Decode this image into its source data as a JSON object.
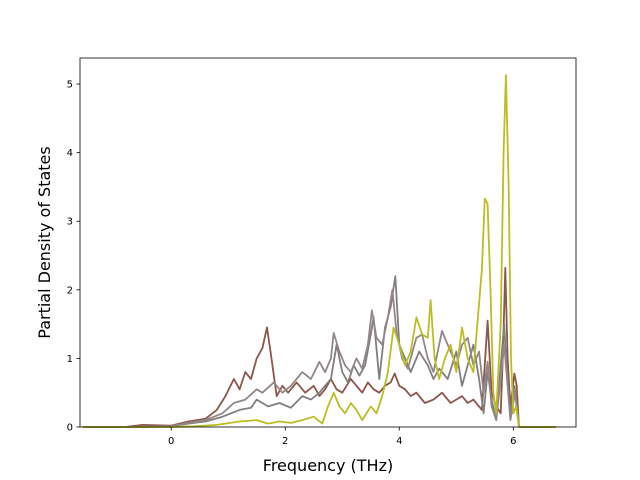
{
  "chart_data": {
    "type": "line",
    "xlabel": "Frequency (THz)",
    "ylabel": "Partial Density of States",
    "xlim": [
      -1.6,
      7.1
    ],
    "ylim": [
      0,
      5.38
    ],
    "xticks": [
      "0",
      "2",
      "4",
      "6"
    ],
    "yticks": [
      "0",
      "1",
      "2",
      "3",
      "4",
      "5"
    ],
    "legend": "none",
    "grid": false,
    "series": [
      {
        "color": "#8c564b",
        "points": [
          [
            -1.55,
            0
          ],
          [
            -0.8,
            0
          ],
          [
            -0.5,
            0.03
          ],
          [
            0,
            0.02
          ],
          [
            0.3,
            0.08
          ],
          [
            0.6,
            0.12
          ],
          [
            0.8,
            0.25
          ],
          [
            0.95,
            0.45
          ],
          [
            1.1,
            0.7
          ],
          [
            1.2,
            0.55
          ],
          [
            1.3,
            0.8
          ],
          [
            1.4,
            0.7
          ],
          [
            1.5,
            1.0
          ],
          [
            1.6,
            1.15
          ],
          [
            1.68,
            1.45
          ],
          [
            1.75,
            1.05
          ],
          [
            1.85,
            0.45
          ],
          [
            1.95,
            0.6
          ],
          [
            2.05,
            0.5
          ],
          [
            2.2,
            0.65
          ],
          [
            2.35,
            0.5
          ],
          [
            2.5,
            0.6
          ],
          [
            2.6,
            0.45
          ],
          [
            2.7,
            0.55
          ],
          [
            2.8,
            0.7
          ],
          [
            2.9,
            0.55
          ],
          [
            3.0,
            0.5
          ],
          [
            3.15,
            0.7
          ],
          [
            3.25,
            0.6
          ],
          [
            3.35,
            0.5
          ],
          [
            3.45,
            0.65
          ],
          [
            3.55,
            0.55
          ],
          [
            3.65,
            0.5
          ],
          [
            3.75,
            0.6
          ],
          [
            3.85,
            0.65
          ],
          [
            3.92,
            0.78
          ],
          [
            4.0,
            0.6
          ],
          [
            4.1,
            0.55
          ],
          [
            4.2,
            0.45
          ],
          [
            4.3,
            0.5
          ],
          [
            4.45,
            0.35
          ],
          [
            4.6,
            0.4
          ],
          [
            4.75,
            0.5
          ],
          [
            4.9,
            0.35
          ],
          [
            5.0,
            0.4
          ],
          [
            5.1,
            0.45
          ],
          [
            5.2,
            0.35
          ],
          [
            5.3,
            0.4
          ],
          [
            5.45,
            0.25
          ],
          [
            5.55,
            1.55
          ],
          [
            5.62,
            0.5
          ],
          [
            5.7,
            0.3
          ],
          [
            5.78,
            0.2
          ],
          [
            5.82,
            1.1
          ],
          [
            5.86,
            2.32
          ],
          [
            5.9,
            1.0
          ],
          [
            5.95,
            0.3
          ],
          [
            6.02,
            0.78
          ],
          [
            6.06,
            0.6
          ],
          [
            6.1,
            0
          ],
          [
            6.75,
            0
          ]
        ]
      },
      {
        "color": "#7f7f7f",
        "points": [
          [
            -1.55,
            0
          ],
          [
            -0.5,
            0
          ],
          [
            0,
            0.01
          ],
          [
            0.3,
            0.05
          ],
          [
            0.6,
            0.08
          ],
          [
            0.9,
            0.15
          ],
          [
            1.2,
            0.25
          ],
          [
            1.4,
            0.28
          ],
          [
            1.5,
            0.4
          ],
          [
            1.7,
            0.3
          ],
          [
            1.9,
            0.35
          ],
          [
            2.1,
            0.28
          ],
          [
            2.3,
            0.45
          ],
          [
            2.45,
            0.4
          ],
          [
            2.6,
            0.5
          ],
          [
            2.7,
            0.6
          ],
          [
            2.8,
            0.7
          ],
          [
            2.9,
            1.2
          ],
          [
            3.0,
            0.8
          ],
          [
            3.1,
            0.65
          ],
          [
            3.2,
            0.9
          ],
          [
            3.3,
            0.75
          ],
          [
            3.4,
            0.9
          ],
          [
            3.5,
            1.35
          ],
          [
            3.55,
            1.6
          ],
          [
            3.65,
            0.7
          ],
          [
            3.75,
            1.45
          ],
          [
            3.85,
            1.75
          ],
          [
            3.93,
            2.2
          ],
          [
            4.0,
            1.2
          ],
          [
            4.1,
            1.0
          ],
          [
            4.2,
            0.8
          ],
          [
            4.35,
            1.1
          ],
          [
            4.5,
            0.9
          ],
          [
            4.6,
            0.7
          ],
          [
            4.7,
            0.85
          ],
          [
            4.85,
            0.7
          ],
          [
            5.0,
            1.1
          ],
          [
            5.1,
            0.6
          ],
          [
            5.2,
            0.9
          ],
          [
            5.3,
            1.2
          ],
          [
            5.4,
            0.7
          ],
          [
            5.48,
            0.2
          ],
          [
            5.55,
            0.8
          ],
          [
            5.62,
            0.4
          ],
          [
            5.7,
            0.1
          ],
          [
            5.78,
            0.9
          ],
          [
            5.84,
            1.5
          ],
          [
            5.88,
            0.9
          ],
          [
            5.95,
            0.15
          ],
          [
            6.02,
            0.6
          ],
          [
            6.05,
            0.4
          ],
          [
            6.1,
            0
          ],
          [
            6.75,
            0
          ]
        ]
      },
      {
        "color": "#948687",
        "points": [
          [
            -1.55,
            0
          ],
          [
            -0.5,
            0
          ],
          [
            0,
            0.01
          ],
          [
            0.3,
            0.06
          ],
          [
            0.6,
            0.1
          ],
          [
            0.9,
            0.2
          ],
          [
            1.1,
            0.35
          ],
          [
            1.3,
            0.4
          ],
          [
            1.5,
            0.55
          ],
          [
            1.6,
            0.5
          ],
          [
            1.8,
            0.65
          ],
          [
            1.95,
            0.5
          ],
          [
            2.1,
            0.6
          ],
          [
            2.3,
            0.8
          ],
          [
            2.45,
            0.7
          ],
          [
            2.6,
            0.95
          ],
          [
            2.7,
            0.8
          ],
          [
            2.8,
            1.0
          ],
          [
            2.85,
            1.37
          ],
          [
            2.95,
            1.1
          ],
          [
            3.05,
            0.9
          ],
          [
            3.15,
            0.8
          ],
          [
            3.25,
            1.0
          ],
          [
            3.35,
            0.85
          ],
          [
            3.45,
            1.2
          ],
          [
            3.52,
            1.7
          ],
          [
            3.6,
            1.3
          ],
          [
            3.7,
            1.2
          ],
          [
            3.8,
            1.6
          ],
          [
            3.88,
            2.0
          ],
          [
            3.95,
            1.4
          ],
          [
            4.05,
            1.0
          ],
          [
            4.15,
            0.85
          ],
          [
            4.3,
            1.3
          ],
          [
            4.4,
            1.35
          ],
          [
            4.5,
            1.0
          ],
          [
            4.6,
            0.8
          ],
          [
            4.75,
            1.4
          ],
          [
            4.9,
            1.1
          ],
          [
            5.0,
            0.9
          ],
          [
            5.1,
            1.2
          ],
          [
            5.2,
            1.3
          ],
          [
            5.3,
            0.9
          ],
          [
            5.4,
            1.1
          ],
          [
            5.48,
            0.5
          ],
          [
            5.55,
            0.95
          ],
          [
            5.62,
            0.3
          ],
          [
            5.7,
            0.1
          ],
          [
            5.78,
            0.7
          ],
          [
            5.84,
            1.2
          ],
          [
            5.9,
            0.6
          ],
          [
            5.95,
            0.1
          ],
          [
            6.03,
            0.5
          ],
          [
            6.1,
            0
          ],
          [
            6.75,
            0
          ]
        ]
      },
      {
        "color": "#bcbd22",
        "points": [
          [
            -1.55,
            0
          ],
          [
            0,
            0
          ],
          [
            0.4,
            0.01
          ],
          [
            0.8,
            0.03
          ],
          [
            1.2,
            0.08
          ],
          [
            1.5,
            0.1
          ],
          [
            1.7,
            0.05
          ],
          [
            1.9,
            0.08
          ],
          [
            2.1,
            0.06
          ],
          [
            2.3,
            0.1
          ],
          [
            2.5,
            0.15
          ],
          [
            2.65,
            0.05
          ],
          [
            2.75,
            0.3
          ],
          [
            2.85,
            0.5
          ],
          [
            2.95,
            0.3
          ],
          [
            3.05,
            0.2
          ],
          [
            3.15,
            0.35
          ],
          [
            3.25,
            0.25
          ],
          [
            3.35,
            0.1
          ],
          [
            3.5,
            0.3
          ],
          [
            3.6,
            0.2
          ],
          [
            3.7,
            0.45
          ],
          [
            3.8,
            0.8
          ],
          [
            3.9,
            1.45
          ],
          [
            4.0,
            1.2
          ],
          [
            4.1,
            0.9
          ],
          [
            4.2,
            1.1
          ],
          [
            4.3,
            1.6
          ],
          [
            4.4,
            1.35
          ],
          [
            4.5,
            1.3
          ],
          [
            4.55,
            1.85
          ],
          [
            4.62,
            1.0
          ],
          [
            4.7,
            0.7
          ],
          [
            4.8,
            1.0
          ],
          [
            4.9,
            1.2
          ],
          [
            5.0,
            0.8
          ],
          [
            5.1,
            1.45
          ],
          [
            5.2,
            1.0
          ],
          [
            5.3,
            0.8
          ],
          [
            5.38,
            1.6
          ],
          [
            5.45,
            2.3
          ],
          [
            5.5,
            3.33
          ],
          [
            5.55,
            3.25
          ],
          [
            5.6,
            2.0
          ],
          [
            5.65,
            0.5
          ],
          [
            5.7,
            0.2
          ],
          [
            5.78,
            1.5
          ],
          [
            5.83,
            4.0
          ],
          [
            5.87,
            5.13
          ],
          [
            5.92,
            3.5
          ],
          [
            5.96,
            1.0
          ],
          [
            6.0,
            0.2
          ],
          [
            6.05,
            0.3
          ],
          [
            6.1,
            0
          ],
          [
            6.75,
            0
          ]
        ]
      }
    ]
  }
}
